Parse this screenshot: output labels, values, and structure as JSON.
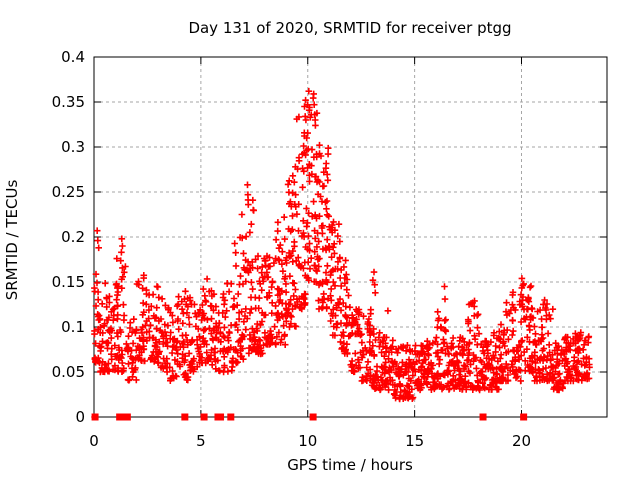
{
  "chart_data": {
    "type": "scatter",
    "title": "Day 131 of 2020, SRMTID for receiver ptgg",
    "xlabel": "GPS time / hours",
    "ylabel": "SRMTID / TECUs",
    "xlim": [
      0,
      24
    ],
    "ylim": [
      0,
      0.4
    ],
    "xticks": [
      0,
      5,
      10,
      15,
      20
    ],
    "xtick_labels": [
      "0",
      "5",
      "10",
      "15",
      "20"
    ],
    "yticks": [
      0,
      0.05,
      0.1,
      0.15,
      0.2,
      0.25,
      0.3,
      0.35,
      0.4
    ],
    "ytick_labels": [
      "0",
      "0.05",
      "0.1",
      "0.15",
      "0.2",
      "0.25",
      "0.3",
      "0.35",
      "0.4"
    ],
    "grid": true,
    "legend": "none",
    "colors": {
      "marker": "#ff0000",
      "grid": "#a6a6a6",
      "border": "#000000",
      "background": "#ffffff"
    },
    "seed": 131,
    "series": [
      {
        "name": "srmtid",
        "marker": "plus",
        "color": "#ff0000",
        "density_profile": [
          [
            0.0,
            0.3,
            30,
            0.06,
            0.16
          ],
          [
            0.3,
            0.6,
            25,
            0.05,
            0.15
          ],
          [
            0.6,
            1.0,
            30,
            0.05,
            0.135
          ],
          [
            1.0,
            1.5,
            45,
            0.05,
            0.185
          ],
          [
            1.5,
            2.0,
            32,
            0.04,
            0.12
          ],
          [
            2.0,
            2.5,
            38,
            0.06,
            0.16
          ],
          [
            2.5,
            3.0,
            38,
            0.06,
            0.15
          ],
          [
            3.0,
            3.5,
            34,
            0.05,
            0.14
          ],
          [
            3.5,
            4.0,
            34,
            0.04,
            0.135
          ],
          [
            4.0,
            4.5,
            38,
            0.04,
            0.15
          ],
          [
            4.5,
            5.0,
            34,
            0.05,
            0.13
          ],
          [
            5.0,
            5.5,
            38,
            0.06,
            0.16
          ],
          [
            5.5,
            6.0,
            34,
            0.05,
            0.14
          ],
          [
            6.0,
            6.5,
            38,
            0.05,
            0.15
          ],
          [
            6.5,
            7.0,
            40,
            0.06,
            0.2
          ],
          [
            7.0,
            7.5,
            44,
            0.07,
            0.25
          ],
          [
            7.5,
            8.0,
            40,
            0.07,
            0.18
          ],
          [
            8.0,
            8.5,
            44,
            0.08,
            0.18
          ],
          [
            8.5,
            9.0,
            44,
            0.08,
            0.22
          ],
          [
            9.0,
            9.5,
            48,
            0.1,
            0.27
          ],
          [
            9.5,
            10.0,
            52,
            0.12,
            0.34
          ],
          [
            10.0,
            10.5,
            52,
            0.14,
            0.355
          ],
          [
            10.5,
            11.0,
            48,
            0.12,
            0.3
          ],
          [
            11.0,
            11.5,
            44,
            0.09,
            0.22
          ],
          [
            11.5,
            12.0,
            40,
            0.07,
            0.18
          ],
          [
            12.0,
            12.5,
            40,
            0.05,
            0.12
          ],
          [
            12.5,
            13.0,
            40,
            0.04,
            0.12
          ],
          [
            13.0,
            13.5,
            40,
            0.03,
            0.1
          ],
          [
            13.5,
            14.0,
            40,
            0.03,
            0.09
          ],
          [
            14.0,
            14.5,
            40,
            0.02,
            0.08
          ],
          [
            14.5,
            15.0,
            40,
            0.02,
            0.08
          ],
          [
            15.0,
            15.5,
            40,
            0.03,
            0.09
          ],
          [
            15.5,
            16.0,
            40,
            0.03,
            0.09
          ],
          [
            16.0,
            16.5,
            40,
            0.03,
            0.12
          ],
          [
            16.5,
            17.0,
            40,
            0.03,
            0.09
          ],
          [
            17.0,
            17.5,
            40,
            0.03,
            0.09
          ],
          [
            17.5,
            18.0,
            40,
            0.03,
            0.13
          ],
          [
            18.0,
            18.5,
            40,
            0.03,
            0.1
          ],
          [
            18.5,
            19.0,
            40,
            0.03,
            0.1
          ],
          [
            19.0,
            19.5,
            40,
            0.04,
            0.125
          ],
          [
            19.5,
            20.0,
            42,
            0.04,
            0.14
          ],
          [
            20.0,
            20.5,
            42,
            0.05,
            0.155
          ],
          [
            20.5,
            21.0,
            40,
            0.04,
            0.12
          ],
          [
            21.0,
            21.5,
            40,
            0.04,
            0.13
          ],
          [
            21.5,
            22.0,
            38,
            0.03,
            0.09
          ],
          [
            22.0,
            22.5,
            38,
            0.04,
            0.09
          ],
          [
            22.5,
            23.2,
            55,
            0.04,
            0.095
          ]
        ],
        "notable_points": [
          [
            0.03,
            0.0
          ],
          [
            0.15,
            0.207
          ],
          [
            0.18,
            0.196
          ],
          [
            0.22,
            0.188
          ],
          [
            1.28,
            0.183
          ],
          [
            1.3,
            0.198
          ],
          [
            1.33,
            0.19
          ],
          [
            6.92,
            0.225
          ],
          [
            7.18,
            0.258
          ],
          [
            7.2,
            0.247
          ],
          [
            7.22,
            0.236
          ],
          [
            8.9,
            0.222
          ],
          [
            9.3,
            0.268
          ],
          [
            9.42,
            0.278
          ],
          [
            9.85,
            0.345
          ],
          [
            9.88,
            0.334
          ],
          [
            9.9,
            0.352
          ],
          [
            9.95,
            0.31
          ],
          [
            10.05,
            0.362
          ],
          [
            10.08,
            0.344
          ],
          [
            10.12,
            0.333
          ],
          [
            10.28,
            0.359
          ],
          [
            10.3,
            0.347
          ],
          [
            10.33,
            0.336
          ],
          [
            10.36,
            0.324
          ],
          [
            10.55,
            0.302
          ],
          [
            10.62,
            0.29
          ],
          [
            10.75,
            0.272
          ],
          [
            10.9,
            0.24
          ],
          [
            11.5,
            0.195
          ],
          [
            13.05,
            0.152
          ],
          [
            13.1,
            0.161
          ],
          [
            13.13,
            0.147
          ],
          [
            13.16,
            0.138
          ],
          [
            13.75,
            0.118
          ],
          [
            14.3,
            0.02
          ],
          [
            16.4,
            0.145
          ],
          [
            16.42,
            0.131
          ],
          [
            17.8,
            0.129
          ],
          [
            19.3,
            0.127
          ],
          [
            20.02,
            0.154
          ],
          [
            20.06,
            0.146
          ],
          [
            20.5,
            0.12
          ],
          [
            21.08,
            0.13
          ],
          [
            21.12,
            0.121
          ]
        ]
      },
      {
        "name": "zero-value-flags",
        "marker": "filled-square",
        "color": "#ff0000",
        "x_values": [
          0.05,
          1.2,
          1.25,
          1.32,
          1.42,
          1.5,
          1.56,
          4.25,
          5.15,
          5.8,
          5.92,
          6.4,
          10.25,
          18.2,
          20.1
        ],
        "y_value": 0
      }
    ]
  }
}
